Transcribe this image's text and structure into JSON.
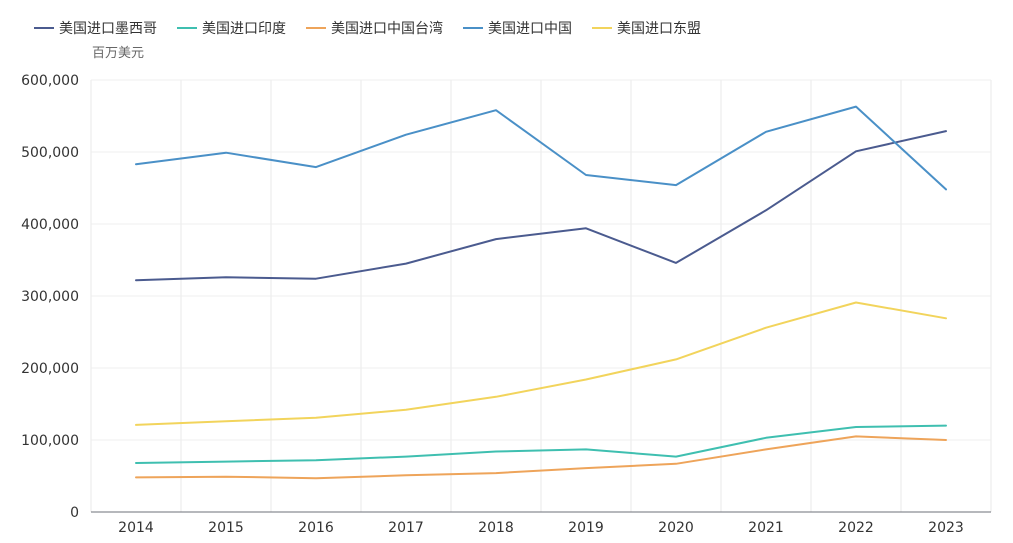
{
  "chart_data": {
    "type": "line",
    "unit": "百万美元",
    "categories": [
      "2014",
      "2015",
      "2016",
      "2017",
      "2018",
      "2019",
      "2020",
      "2021",
      "2022",
      "2023"
    ],
    "ylim": [
      0,
      600000
    ],
    "y_ticks": [
      0,
      100000,
      200000,
      300000,
      400000,
      500000,
      600000
    ],
    "y_tick_labels": [
      "0",
      "100,000",
      "200,000",
      "300,000",
      "400,000",
      "500,000",
      "600,000"
    ],
    "grid": true,
    "legend_position": "top-left",
    "series": [
      {
        "name": "美国进口墨西哥",
        "color": "#4b5b8f",
        "values": [
          322000,
          326000,
          324000,
          345000,
          379000,
          394000,
          346000,
          419000,
          501000,
          529000
        ]
      },
      {
        "name": "美国进口印度",
        "color": "#3fbfb0",
        "values": [
          68000,
          70000,
          72000,
          77000,
          84000,
          87000,
          77000,
          103000,
          118000,
          120000
        ]
      },
      {
        "name": "美国进口中国台湾",
        "color": "#eea45a",
        "values": [
          48000,
          49000,
          47000,
          51000,
          54000,
          61000,
          67000,
          87000,
          105000,
          100000
        ]
      },
      {
        "name": "美国进口中国",
        "color": "#4a90c7",
        "values": [
          483000,
          499000,
          479000,
          524000,
          558000,
          468000,
          454000,
          528000,
          563000,
          448000
        ]
      },
      {
        "name": "美国进口东盟",
        "color": "#f2d45c",
        "values": [
          121000,
          126000,
          131000,
          142000,
          160000,
          184000,
          212000,
          256000,
          291000,
          269000
        ]
      }
    ]
  }
}
